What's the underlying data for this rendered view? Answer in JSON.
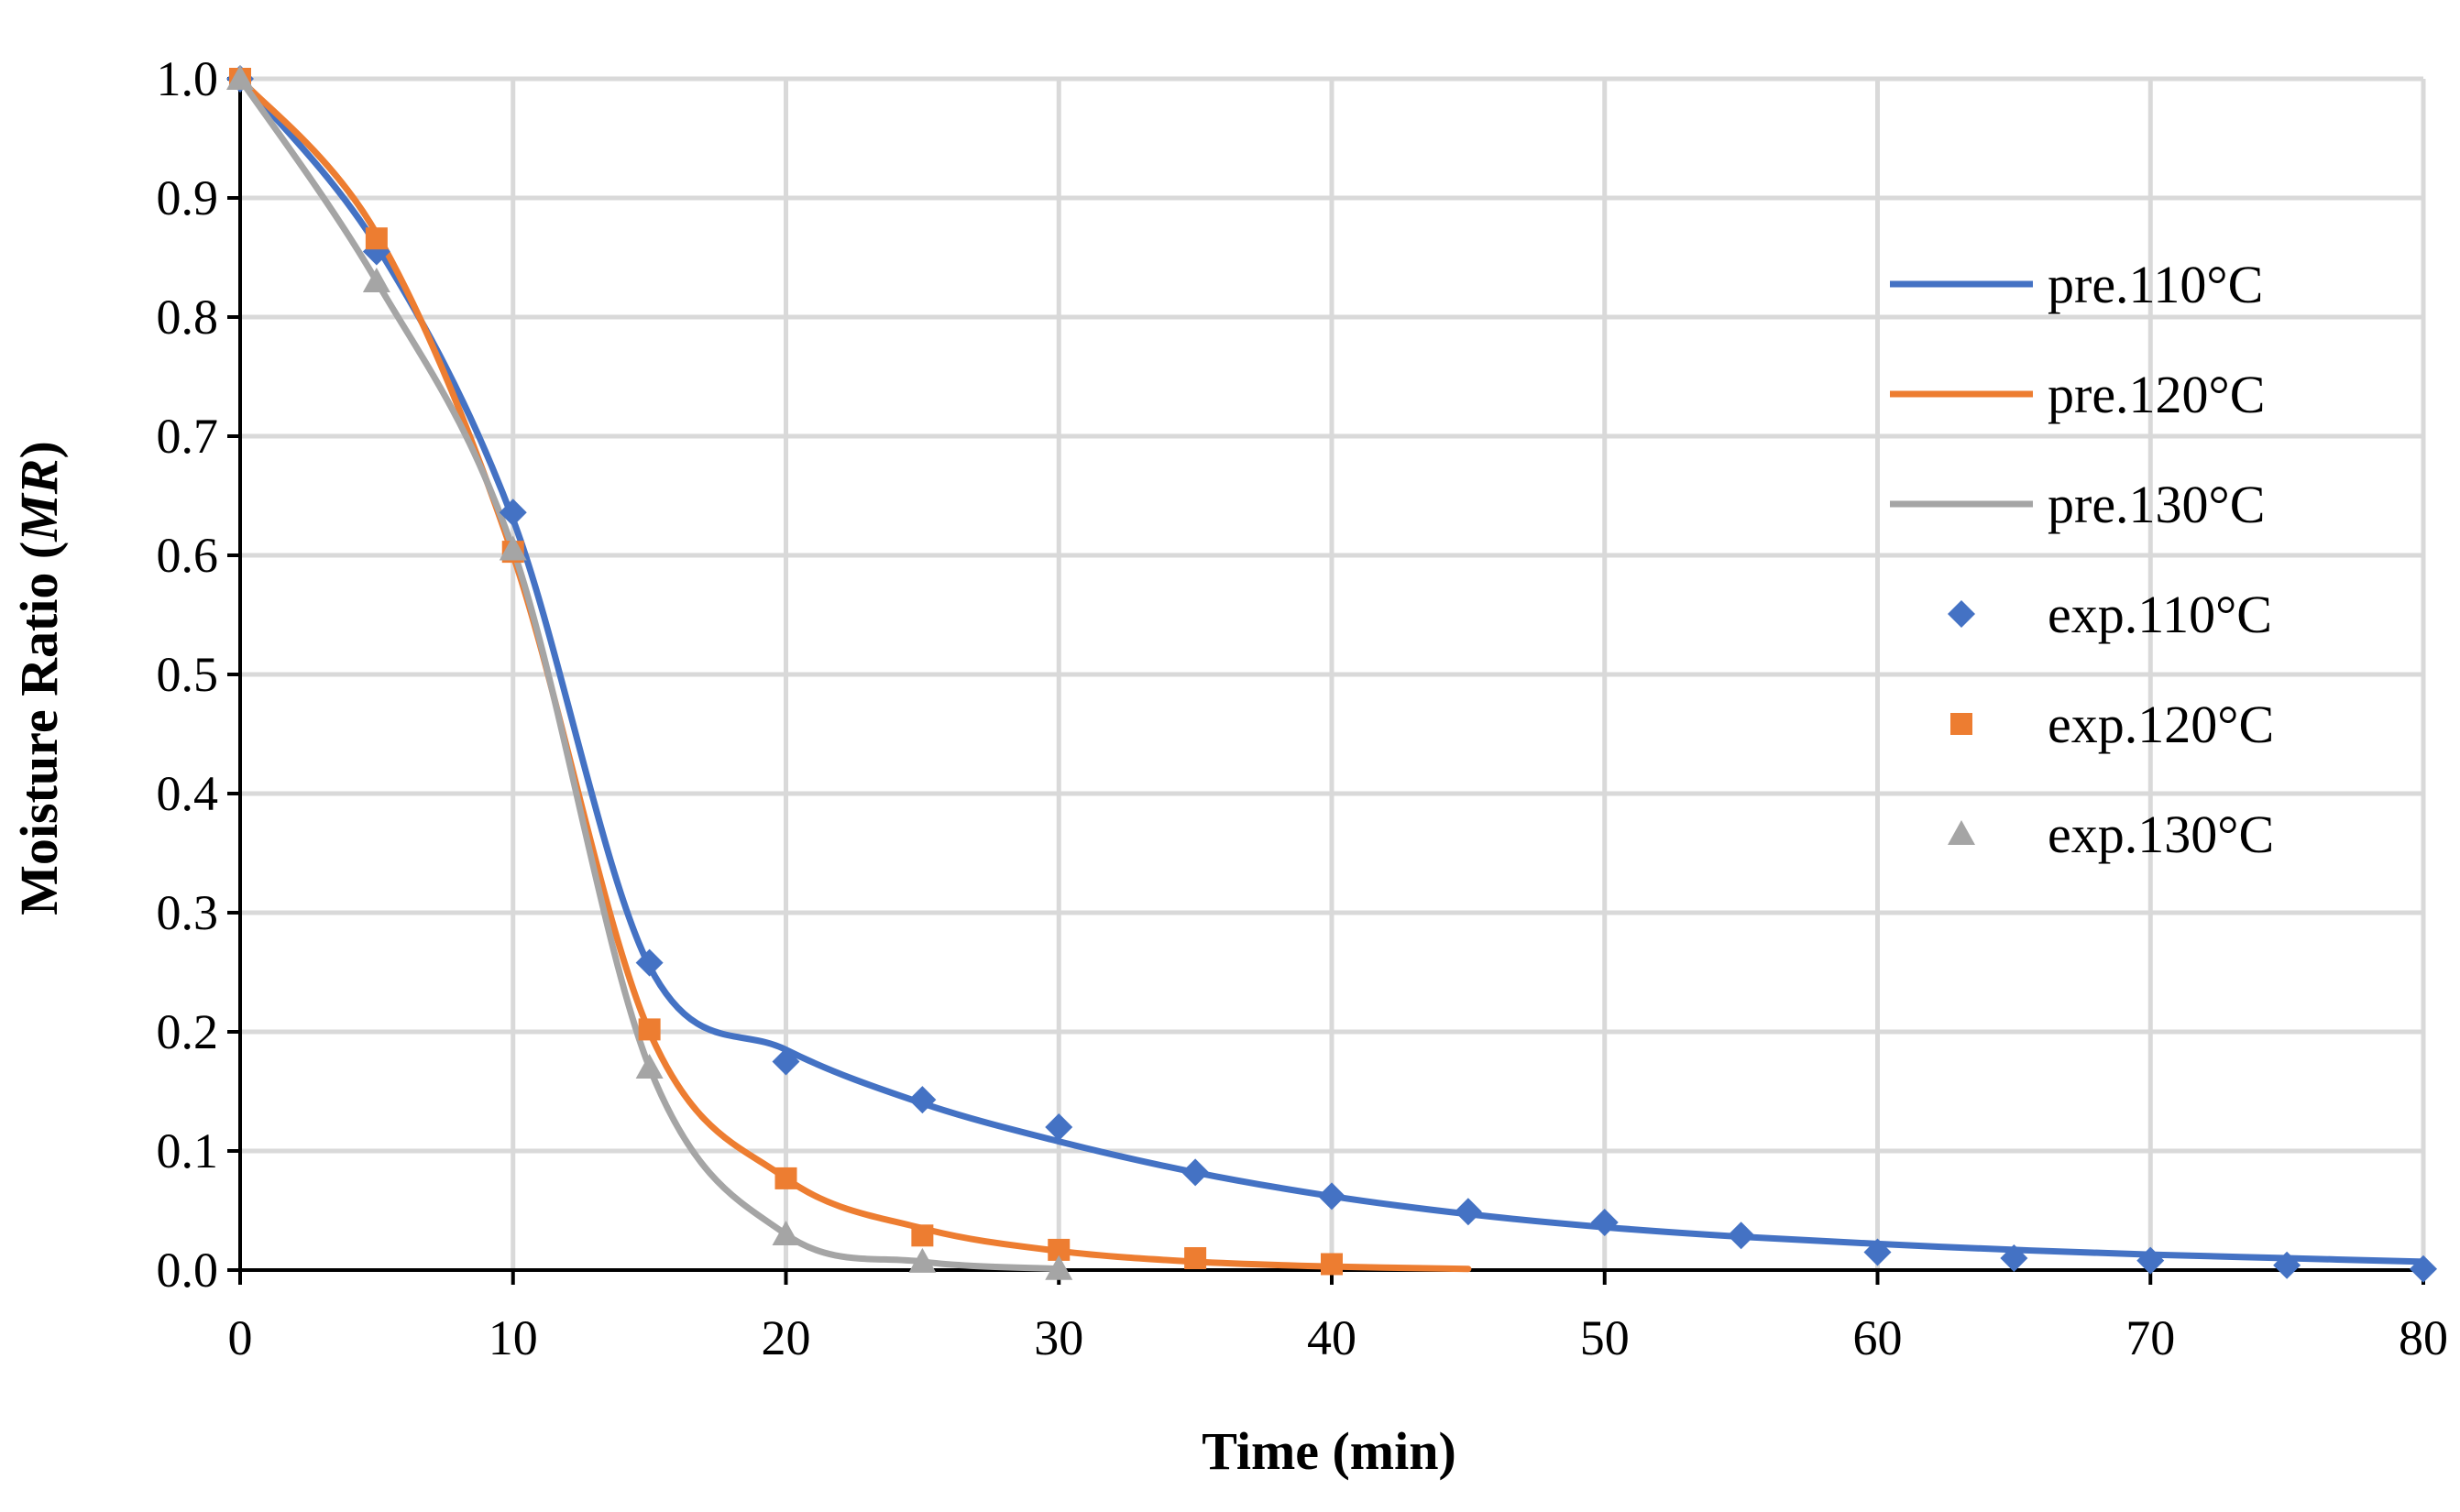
{
  "chart_data": {
    "type": "line",
    "title": "",
    "xlabel": "Time (min)",
    "ylabel_main": "Moisture Ratio (",
    "ylabel_italic": "MR",
    "ylabel_end": ")",
    "xlim": [
      0,
      80
    ],
    "ylim": [
      0,
      1
    ],
    "x_ticks": [
      0,
      10,
      20,
      30,
      40,
      50,
      60,
      70,
      80
    ],
    "x_tick_labels": [
      "0",
      "10",
      "20",
      "30",
      "40",
      "50",
      "60",
      "70",
      "80"
    ],
    "y_ticks": [
      0,
      0.1,
      0.2,
      0.3,
      0.4,
      0.5,
      0.6,
      0.7,
      0.8,
      0.9,
      1.0
    ],
    "y_tick_labels": [
      "0.0",
      "0.1",
      "0.2",
      "0.3",
      "0.4",
      "0.5",
      "0.6",
      "0.7",
      "0.8",
      "0.9",
      "1.0"
    ],
    "grid": true,
    "legend_position": "right",
    "predicted_series": [
      {
        "name": "pre.110°C",
        "color": "#4472c4",
        "x": [
          0,
          5,
          10,
          15,
          20,
          25,
          30,
          35,
          40,
          45,
          50,
          55,
          60,
          65,
          70,
          75,
          80
        ],
        "y": [
          1.0,
          0.86,
          0.63,
          0.255,
          0.185,
          0.14,
          0.108,
          0.082,
          0.062,
          0.047,
          0.036,
          0.028,
          0.022,
          0.017,
          0.013,
          0.01,
          0.007
        ]
      },
      {
        "name": "pre.120°C",
        "color": "#ed7d31",
        "x": [
          0,
          5,
          10,
          15,
          20,
          25,
          30,
          35,
          40,
          45
        ],
        "y": [
          1.0,
          0.87,
          0.6,
          0.2,
          0.077,
          0.035,
          0.016,
          0.007,
          0.003,
          0.001
        ]
      },
      {
        "name": "pre.130°C",
        "color": "#a5a5a5",
        "x": [
          0,
          5,
          10,
          15,
          20,
          25,
          30
        ],
        "y": [
          1.0,
          0.83,
          0.605,
          0.17,
          0.03,
          0.007,
          0.001
        ]
      }
    ],
    "experimental_series": [
      {
        "name": "exp.110°C",
        "color": "#4472c4",
        "marker": "diamond",
        "x": [
          0,
          5,
          10,
          15,
          20,
          25,
          30,
          35,
          40,
          45,
          50,
          55,
          60,
          65,
          70,
          75,
          80
        ],
        "y": [
          1.0,
          0.855,
          0.636,
          0.258,
          0.175,
          0.143,
          0.12,
          0.082,
          0.062,
          0.049,
          0.04,
          0.029,
          0.015,
          0.01,
          0.008,
          0.004,
          0.001
        ]
      },
      {
        "name": "exp.120°C",
        "color": "#ed7d31",
        "marker": "square",
        "x": [
          0,
          5,
          10,
          15,
          20,
          25,
          30,
          35,
          40
        ],
        "y": [
          1.0,
          0.866,
          0.603,
          0.202,
          0.077,
          0.029,
          0.017,
          0.01,
          0.005
        ]
      },
      {
        "name": "exp.130°C",
        "color": "#a5a5a5",
        "marker": "triangle",
        "x": [
          0,
          5,
          10,
          15,
          20,
          25,
          30
        ],
        "y": [
          1.0,
          0.83,
          0.605,
          0.17,
          0.03,
          0.007,
          0.001
        ]
      }
    ]
  }
}
